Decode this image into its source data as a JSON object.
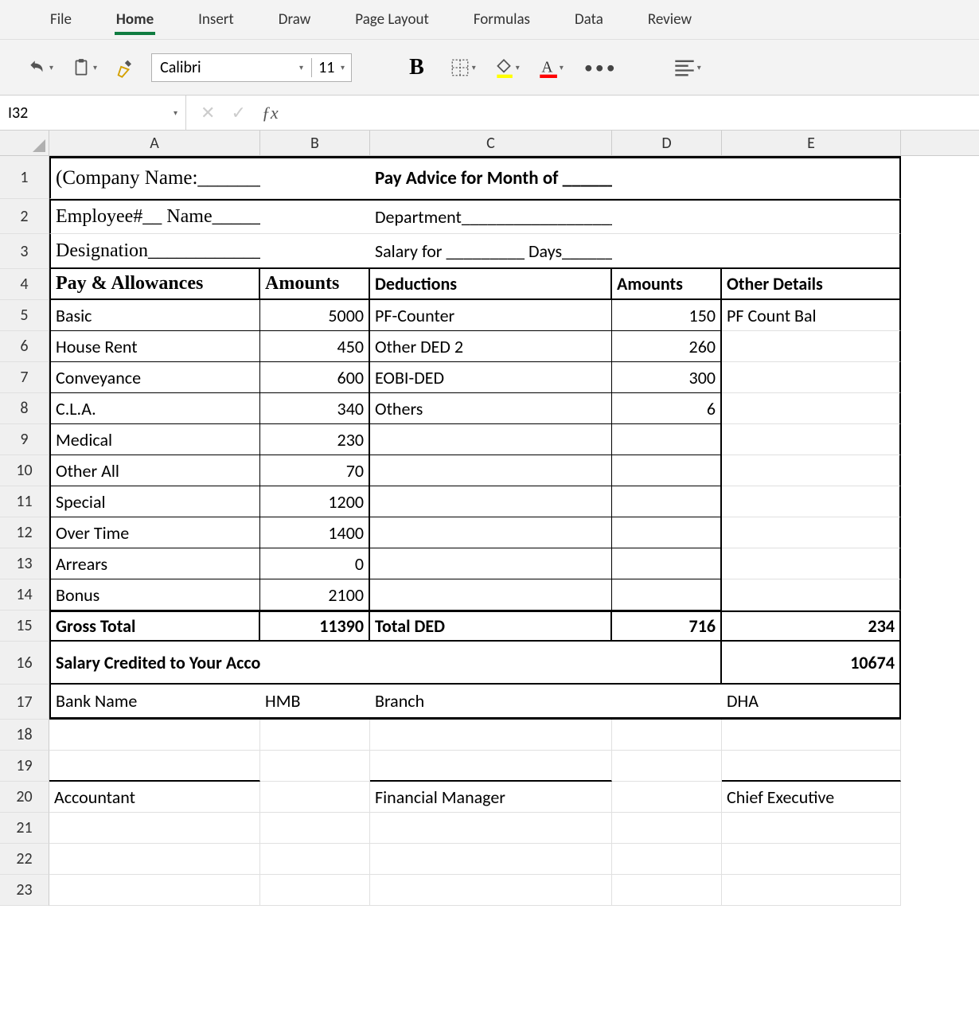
{
  "tabs": [
    "File",
    "Home",
    "Insert",
    "Draw",
    "Page Layout",
    "Formulas",
    "Data",
    "Review"
  ],
  "active_tab_index": 1,
  "toolbar": {
    "font_name": "Calibri",
    "font_size": "11",
    "bold_label": "B"
  },
  "name_box": "I32",
  "columns": [
    "A",
    "B",
    "C",
    "D",
    "E"
  ],
  "row_numbers": [
    1,
    2,
    3,
    4,
    5,
    6,
    7,
    8,
    9,
    10,
    11,
    12,
    13,
    14,
    15,
    16,
    17,
    18,
    19,
    20,
    21,
    22,
    23
  ],
  "sheet": {
    "r1": {
      "a": "(Company Name:_________)",
      "c": "Pay Advice for Month of ____________"
    },
    "r2": {
      "a": "Employee#__   Name________",
      "c": "Department_______________________"
    },
    "r3": {
      "a": "Designation________________",
      "c": "Salary for _________ Days___________"
    },
    "r4": {
      "a": "Pay & Allowances",
      "b": "Amounts",
      "c": "Deductions",
      "d": "Amounts",
      "e": "Other Details"
    },
    "rows": [
      {
        "a": "Basic",
        "b": "5000",
        "c": "PF-Counter",
        "d": "150",
        "e": "PF Count Bal"
      },
      {
        "a": "House Rent",
        "b": "450",
        "c": "Other DED 2",
        "d": "260",
        "e": ""
      },
      {
        "a": "Conveyance",
        "b": "600",
        "c": "EOBI-DED",
        "d": "300",
        "e": ""
      },
      {
        "a": "C.L.A.",
        "b": "340",
        "c": "Others",
        "d": "6",
        "e": ""
      },
      {
        "a": "Medical",
        "b": "230",
        "c": "",
        "d": "",
        "e": ""
      },
      {
        "a": "Other All",
        "b": "70",
        "c": "",
        "d": "",
        "e": ""
      },
      {
        "a": "Special",
        "b": "1200",
        "c": "",
        "d": "",
        "e": ""
      },
      {
        "a": "Over Time",
        "b": "1400",
        "c": "",
        "d": "",
        "e": ""
      },
      {
        "a": "Arrears",
        "b": "0",
        "c": "",
        "d": "",
        "e": ""
      },
      {
        "a": "Bonus",
        "b": "2100",
        "c": "",
        "d": "",
        "e": ""
      }
    ],
    "r15": {
      "a": "Gross Total",
      "b": "11390",
      "c": "Total DED",
      "d": "716",
      "e": "234"
    },
    "r16": {
      "a": "Salary Credited to Your Account#",
      "e": "10674"
    },
    "r17": {
      "a": "Bank Name",
      "b": "HMB",
      "c": "Branch",
      "e": "DHA"
    },
    "r20": {
      "a": "Accountant",
      "c": "Financial Manager",
      "e": "Chief Executive"
    }
  },
  "colors": {
    "ribbon_bg": "#f3f3f3",
    "accent": "#107c41",
    "grid_border": "#e0e0e0",
    "header_bg": "#f0f0f0"
  }
}
